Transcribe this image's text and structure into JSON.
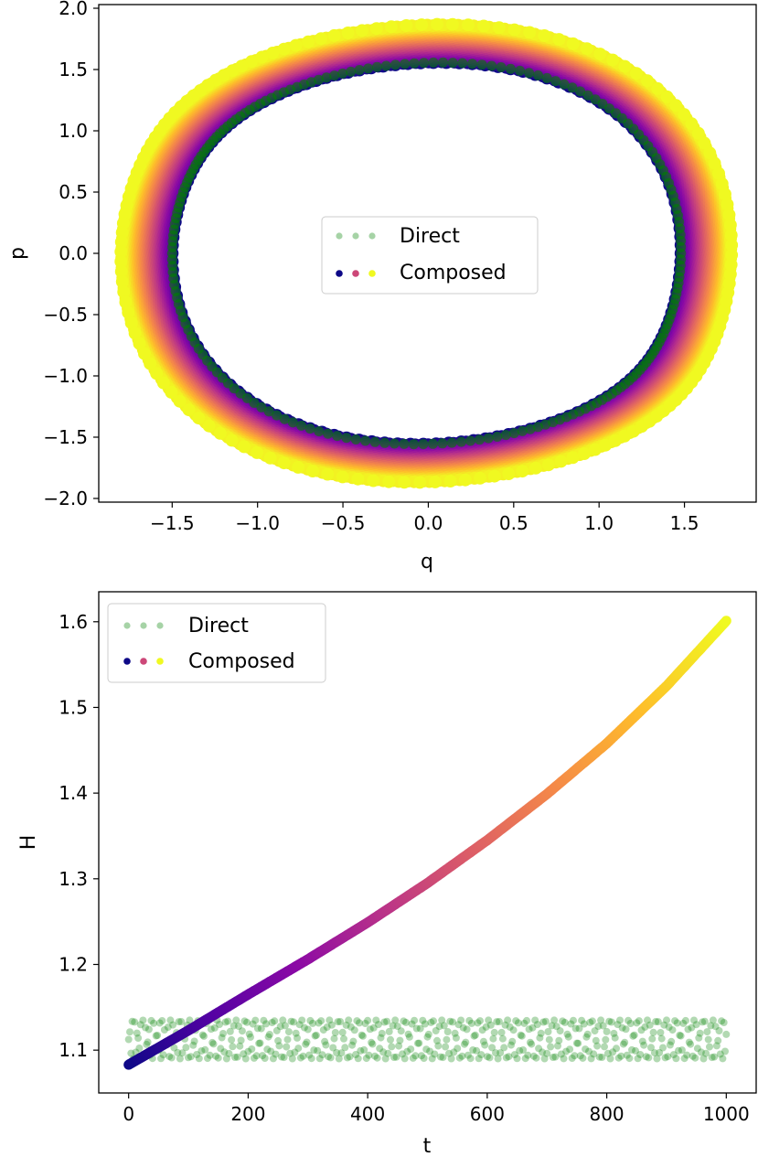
{
  "chart_data": [
    {
      "type": "scatter",
      "xlabel": "q",
      "ylabel": "p",
      "xlim": [
        -1.93,
        1.92
      ],
      "ylim": [
        -2.03,
        2.03
      ],
      "xticks": [
        -1.5,
        -1.0,
        -0.5,
        0.0,
        0.5,
        1.0,
        1.5
      ],
      "yticks": [
        -2.0,
        -1.5,
        -1.0,
        -0.5,
        0.0,
        0.5,
        1.0,
        1.5,
        2.0
      ],
      "xtick_labels": [
        "−1.5",
        "−1.0",
        "−0.5",
        "0.0",
        "0.5",
        "1.0",
        "1.5"
      ],
      "ytick_labels": [
        "−2.0",
        "−1.5",
        "−1.0",
        "−0.5",
        "0.0",
        "0.5",
        "1.0",
        "1.5",
        "2.0"
      ],
      "legend": {
        "placement": "center",
        "entries": [
          "Direct",
          "Composed"
        ]
      },
      "grid": false,
      "series": [
        {
          "name": "Direct",
          "color": "#008000",
          "description_shape": "closed orbit in (q, p)",
          "orbit_samples": {
            "angle_deg": [
              0,
              45,
              90,
              135,
              180,
              225,
              270,
              315
            ],
            "q": [
              1.48,
              1.02,
              -0.3,
              -1.22,
              -1.5,
              -1.02,
              0.3,
              1.22
            ],
            "p": [
              0.0,
              1.22,
              1.52,
              0.98,
              0.0,
              -1.22,
              -1.52,
              -0.98
            ]
          }
        },
        {
          "name": "Composed",
          "colormap": "plasma",
          "description_shape": "outward drifting orbit band",
          "inner_orbit_scale": 1.0,
          "outer_orbit_scale": 1.2
        }
      ]
    },
    {
      "type": "scatter",
      "xlabel": "t",
      "ylabel": "H",
      "xlim": [
        -50,
        1050
      ],
      "ylim": [
        1.05,
        1.635
      ],
      "xticks": [
        0,
        200,
        400,
        600,
        800,
        1000
      ],
      "yticks": [
        1.1,
        1.2,
        1.3,
        1.4,
        1.5,
        1.6
      ],
      "xtick_labels": [
        "0",
        "200",
        "400",
        "600",
        "800",
        "1000"
      ],
      "ytick_labels": [
        "1.1",
        "1.2",
        "1.3",
        "1.4",
        "1.5",
        "1.6"
      ],
      "legend": {
        "placement": "upper-left",
        "entries": [
          "Direct",
          "Composed"
        ]
      },
      "grid": false,
      "series": [
        {
          "name": "Direct",
          "color": "#008000",
          "band": {
            "min": 1.09,
            "max": 1.135
          }
        },
        {
          "name": "Composed",
          "colormap": "plasma",
          "x": [
            0,
            100,
            200,
            300,
            400,
            500,
            600,
            700,
            800,
            900,
            1000
          ],
          "y": [
            1.083,
            1.123,
            1.165,
            1.206,
            1.249,
            1.295,
            1.345,
            1.399,
            1.458,
            1.525,
            1.601
          ]
        }
      ]
    }
  ]
}
